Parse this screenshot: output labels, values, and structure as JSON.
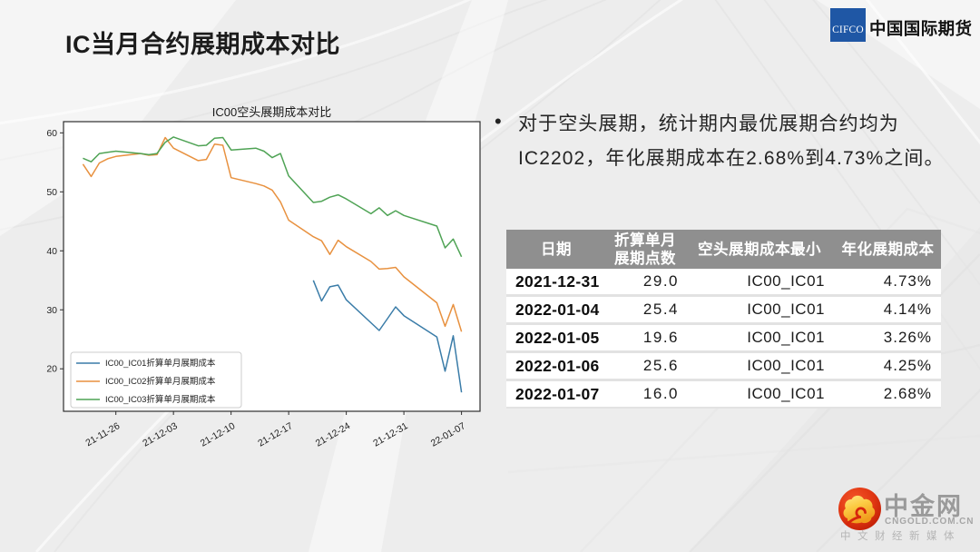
{
  "slide": {
    "title": "IC当月合约展期成本对比",
    "bullet": {
      "marker": "•",
      "line1": "对于空头展期，统计期内最优展期合约均为",
      "line2": "IC2202，年化展期成本在2.68%到4.73%之间。"
    }
  },
  "logos": {
    "cifco": {
      "abbr": "CIFCO",
      "name": "中国国际期货",
      "square_color": "#1f57a5"
    },
    "cngold": {
      "name": "中金网",
      "domain": "CNGOLD.COM.CN",
      "slogan": "中文财经新媒体",
      "circle_color": "#d7260c"
    }
  },
  "table": {
    "headers": [
      "日期",
      "折算单月\n展期点数",
      "空头展期成本最小",
      "年化展期成本"
    ],
    "rows": [
      [
        "2021-12-31",
        "29.0",
        "IC00_IC01",
        "4.73%"
      ],
      [
        "2022-01-04",
        "25.4",
        "IC00_IC01",
        "4.14%"
      ],
      [
        "2022-01-05",
        "19.6",
        "IC00_IC01",
        "3.26%"
      ],
      [
        "2022-01-06",
        "25.6",
        "IC00_IC01",
        "4.25%"
      ],
      [
        "2022-01-07",
        "16.0",
        "IC00_IC01",
        "2.68%"
      ]
    ],
    "header_bg": "#8f8f8f"
  },
  "chart_data": {
    "type": "line",
    "title": "IC00空头展期成本对比",
    "xlabel": "",
    "ylabel": "",
    "ylim": [
      12.8,
      61.9
    ],
    "yticks": [
      20,
      30,
      40,
      50,
      60
    ],
    "grid": false,
    "legend_position": "lower left",
    "x_dates": [
      "21-11-22",
      "21-11-23",
      "21-11-24",
      "21-11-25",
      "21-11-26",
      "21-11-29",
      "21-11-30",
      "21-12-01",
      "21-12-02",
      "21-12-03",
      "21-12-06",
      "21-12-07",
      "21-12-08",
      "21-12-09",
      "21-12-10",
      "21-12-13",
      "21-12-14",
      "21-12-15",
      "21-12-16",
      "21-12-17",
      "21-12-20",
      "21-12-21",
      "21-12-22",
      "21-12-23",
      "21-12-24",
      "21-12-27",
      "21-12-28",
      "21-12-29",
      "21-12-30",
      "21-12-31",
      "22-01-04",
      "22-01-05",
      "22-01-06",
      "22-01-07"
    ],
    "x_day_offsets": [
      0,
      1,
      2,
      3,
      4,
      7,
      8,
      9,
      10,
      11,
      14,
      15,
      16,
      17,
      18,
      21,
      22,
      23,
      24,
      25,
      28,
      29,
      30,
      31,
      32,
      35,
      36,
      37,
      38,
      39,
      43,
      44,
      45,
      46
    ],
    "xticks": [
      {
        "day": 4,
        "label": "21-11-26"
      },
      {
        "day": 11,
        "label": "21-12-03"
      },
      {
        "day": 18,
        "label": "21-12-10"
      },
      {
        "day": 25,
        "label": "21-12-17"
      },
      {
        "day": 32,
        "label": "21-12-24"
      },
      {
        "day": 39,
        "label": "21-12-31"
      },
      {
        "day": 46,
        "label": "22-01-07"
      }
    ],
    "series": [
      {
        "name": "IC00_IC01折算单月展期成本",
        "color": "#3a7ca8",
        "values": [
          null,
          null,
          null,
          null,
          null,
          null,
          null,
          null,
          null,
          null,
          null,
          null,
          null,
          null,
          null,
          null,
          null,
          null,
          null,
          null,
          35.0,
          31.5,
          33.9,
          34.2,
          31.7,
          27.8,
          26.5,
          28.5,
          30.5,
          29.0,
          25.4,
          19.6,
          25.6,
          16.0
        ]
      },
      {
        "name": "IC00_IC02折算单月展期成本",
        "color": "#e8913f",
        "values": [
          54.7,
          52.6,
          54.9,
          55.6,
          56.0,
          56.5,
          56.2,
          56.3,
          59.2,
          57.4,
          55.3,
          55.5,
          58.1,
          57.9,
          52.4,
          51.4,
          51.0,
          50.3,
          48.3,
          45.2,
          42.4,
          41.7,
          39.4,
          41.8,
          40.7,
          38.2,
          36.9,
          37.0,
          37.2,
          35.6,
          31.2,
          27.2,
          30.9,
          26.3
        ]
      },
      {
        "name": "IC00_IC03折算单月展期成本",
        "color": "#4fa355",
        "values": [
          55.7,
          55.1,
          56.5,
          56.7,
          56.9,
          56.5,
          56.3,
          56.5,
          58.4,
          59.3,
          57.8,
          57.9,
          59.1,
          59.2,
          57.1,
          57.4,
          56.9,
          55.8,
          56.5,
          52.7,
          48.2,
          48.4,
          49.1,
          49.5,
          48.8,
          46.3,
          47.3,
          46.0,
          46.8,
          46.0,
          44.2,
          40.5,
          42.0,
          39.0
        ]
      }
    ]
  }
}
